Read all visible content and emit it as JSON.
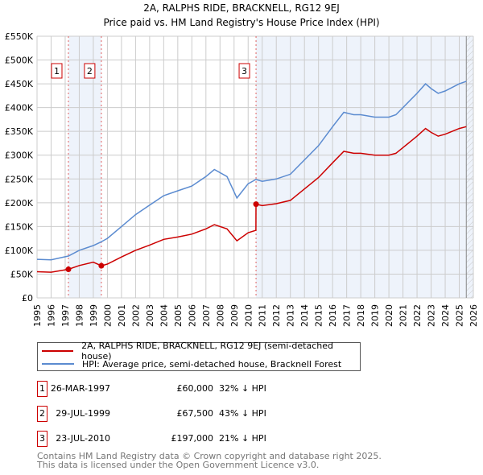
{
  "chart_data": {
    "type": "line",
    "title": "2A, RALPHS RIDE, BRACKNELL, RG12 9EJ",
    "subtitle": "Price paid vs. HM Land Registry's House Price Index (HPI)",
    "xlim": [
      1995,
      2026
    ],
    "ylim": [
      0,
      550000
    ],
    "yticks": [
      {
        "v": 0,
        "l": "£0"
      },
      {
        "v": 50000,
        "l": "£50K"
      },
      {
        "v": 100000,
        "l": "£100K"
      },
      {
        "v": 150000,
        "l": "£150K"
      },
      {
        "v": 200000,
        "l": "£200K"
      },
      {
        "v": 250000,
        "l": "£250K"
      },
      {
        "v": 300000,
        "l": "£300K"
      },
      {
        "v": 350000,
        "l": "£350K"
      },
      {
        "v": 400000,
        "l": "£400K"
      },
      {
        "v": 450000,
        "l": "£450K"
      },
      {
        "v": 500000,
        "l": "£500K"
      },
      {
        "v": 550000,
        "l": "£550K"
      }
    ],
    "xticks": [
      "1995",
      "1996",
      "1997",
      "1998",
      "1999",
      "2000",
      "2001",
      "2002",
      "2003",
      "2004",
      "2005",
      "2006",
      "2007",
      "2008",
      "2009",
      "2010",
      "2011",
      "2012",
      "2013",
      "2014",
      "2015",
      "2016",
      "2017",
      "2018",
      "2019",
      "2020",
      "2021",
      "2022",
      "2023",
      "2024",
      "2025",
      "2026"
    ],
    "grid": true,
    "series": [
      {
        "name": "2A, RALPHS RIDE, BRACKNELL, RG12 9EJ (semi-detached house)",
        "color": "#cc0000",
        "x": [
          1995,
          1996,
          1997.23,
          1998,
          1999,
          1999.57,
          2000,
          2001,
          2002,
          2003,
          2004,
          2005,
          2006,
          2007,
          2007.6,
          2008.5,
          2009.2,
          2010,
          2010.55,
          2010.56,
          2011,
          2012,
          2013,
          2014,
          2015,
          2016,
          2016.8,
          2017.5,
          2018,
          2019,
          2020,
          2020.5,
          2021,
          2022,
          2022.6,
          2023,
          2023.5,
          2024,
          2025,
          2025.5
        ],
        "y": [
          55,
          54,
          60,
          68,
          75,
          67.5,
          71,
          86,
          100,
          111,
          123,
          128,
          134,
          145,
          154,
          145,
          120,
          137,
          142,
          197,
          194,
          198,
          205,
          229,
          253,
          284,
          308,
          304,
          304,
          300,
          300,
          304,
          316,
          340,
          356,
          348,
          340,
          344,
          356,
          360
        ]
      },
      {
        "name": "HPI: Average price, semi-detached house, Bracknell Forest",
        "color": "#5b8bd0",
        "x": [
          1995,
          1996,
          1997.23,
          1998,
          1999,
          1999.57,
          2000,
          2001,
          2002,
          2003,
          2004,
          2005,
          2006,
          2007,
          2007.6,
          2008.5,
          2009.2,
          2010,
          2010.56,
          2011,
          2012,
          2013,
          2014,
          2015,
          2016,
          2016.8,
          2017.5,
          2018,
          2019,
          2020,
          2020.5,
          2021,
          2022,
          2022.6,
          2023,
          2023.5,
          2024,
          2025,
          2025.5
        ],
        "y": [
          81,
          80,
          88,
          100,
          110,
          118,
          125,
          150,
          175,
          195,
          215,
          225,
          235,
          255,
          270,
          255,
          210,
          240,
          249,
          245,
          250,
          260,
          290,
          320,
          360,
          390,
          385,
          385,
          380,
          380,
          385,
          400,
          430,
          450,
          440,
          430,
          435,
          450,
          455
        ]
      }
    ],
    "y_units": "thousands GBP",
    "sales": [
      {
        "n": "1",
        "x": 1997.23,
        "y": 60
      },
      {
        "n": "2",
        "x": 1999.57,
        "y": 67.5
      },
      {
        "n": "3",
        "x": 2010.56,
        "y": 197
      }
    ],
    "data_end": 2025.5
  },
  "legend": [
    "2A, RALPHS RIDE, BRACKNELL, RG12 9EJ (semi-detached house)",
    "HPI: Average price, semi-detached house, Bracknell Forest"
  ],
  "table": [
    {
      "n": "1",
      "date": "26-MAR-1997",
      "price": "£60,000",
      "hpi": "32% ↓ HPI"
    },
    {
      "n": "2",
      "date": "29-JUL-1999",
      "price": "£67,500",
      "hpi": "43% ↓ HPI"
    },
    {
      "n": "3",
      "date": "23-JUL-2010",
      "price": "£197,000",
      "hpi": "21% ↓ HPI"
    }
  ],
  "footer": [
    "Contains HM Land Registry data © Crown copyright and database right 2025.",
    "This data is licensed under the Open Government Licence v3.0."
  ]
}
